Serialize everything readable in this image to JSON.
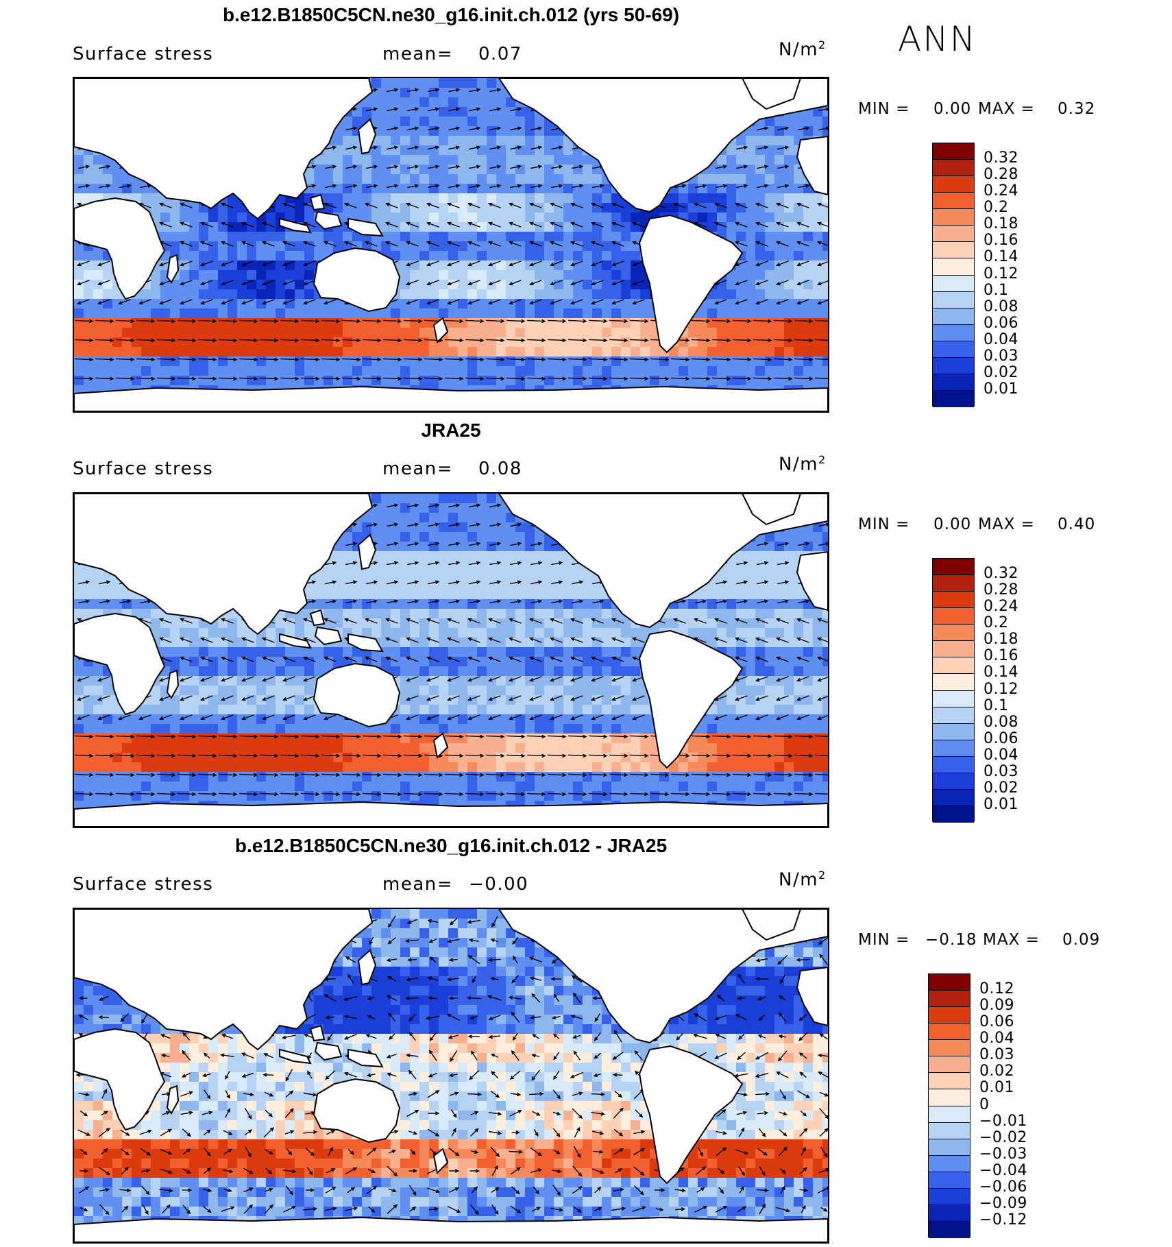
{
  "season": "ANN",
  "colors": {
    "land": "#ffffff",
    "coast": "#000000",
    "arrow": "#000000"
  },
  "abs_scale": {
    "labels": [
      "0.32",
      "0.28",
      "0.24",
      "0.2",
      "0.18",
      "0.16",
      "0.14",
      "0.12",
      "0.1",
      "0.08",
      "0.06",
      "0.04",
      "0.03",
      "0.02",
      "0.01"
    ],
    "colors": [
      "#7f0000",
      "#b2200e",
      "#dc3b10",
      "#f2602f",
      "#f68a5b",
      "#f9b08e",
      "#fcd1b5",
      "#fdeedd",
      "#d9eaf8",
      "#b7d3f3",
      "#8eb7ee",
      "#5f8ff0",
      "#3562e8",
      "#1a3fd8",
      "#0a24b8",
      "#00128a"
    ]
  },
  "diff_scale": {
    "labels": [
      "0.12",
      "0.09",
      "0.06",
      "0.04",
      "0.03",
      "0.02",
      "0.01",
      "0",
      "−0.01",
      "−0.02",
      "−0.03",
      "−0.04",
      "−0.06",
      "−0.09",
      "−0.12"
    ],
    "colors": [
      "#7f0000",
      "#b2200e",
      "#dc3b10",
      "#f2602f",
      "#f68a5b",
      "#f9b08e",
      "#fcd1b5",
      "#fdeedd",
      "#d9eaf8",
      "#b7d3f3",
      "#8eb7ee",
      "#5f8ff0",
      "#3562e8",
      "#1a3fd8",
      "#0a24b8",
      "#00128a"
    ]
  },
  "panels": [
    {
      "title": "b.e12.B1850C5CN.ne30_g16.init.ch.012 (yrs 50-69)",
      "left_label": "Surface stress",
      "mean_label": "mean=",
      "mean_value": "0.07",
      "units": "N/m",
      "units_exp": "2",
      "min_label": "MIN =",
      "min_value": "0.00",
      "max_label": "MAX =",
      "max_value": "0.32",
      "kind": "model"
    },
    {
      "title": "JRA25",
      "left_label": "Surface stress",
      "mean_label": "mean=",
      "mean_value": "0.08",
      "units": "N/m",
      "units_exp": "2",
      "min_label": "MIN =",
      "min_value": "0.00",
      "max_label": "MAX =",
      "max_value": "0.40",
      "kind": "obs"
    },
    {
      "title": "b.e12.B1850C5CN.ne30_g16.init.ch.012 - JRA25",
      "left_label": "Surface stress",
      "mean_label": "mean=",
      "mean_value": "−0.00",
      "units": "N/m",
      "units_exp": "2",
      "min_label": "MIN =",
      "min_value": "−0.18",
      "max_label": "MAX =",
      "max_value": "0.09",
      "kind": "diff"
    }
  ]
}
